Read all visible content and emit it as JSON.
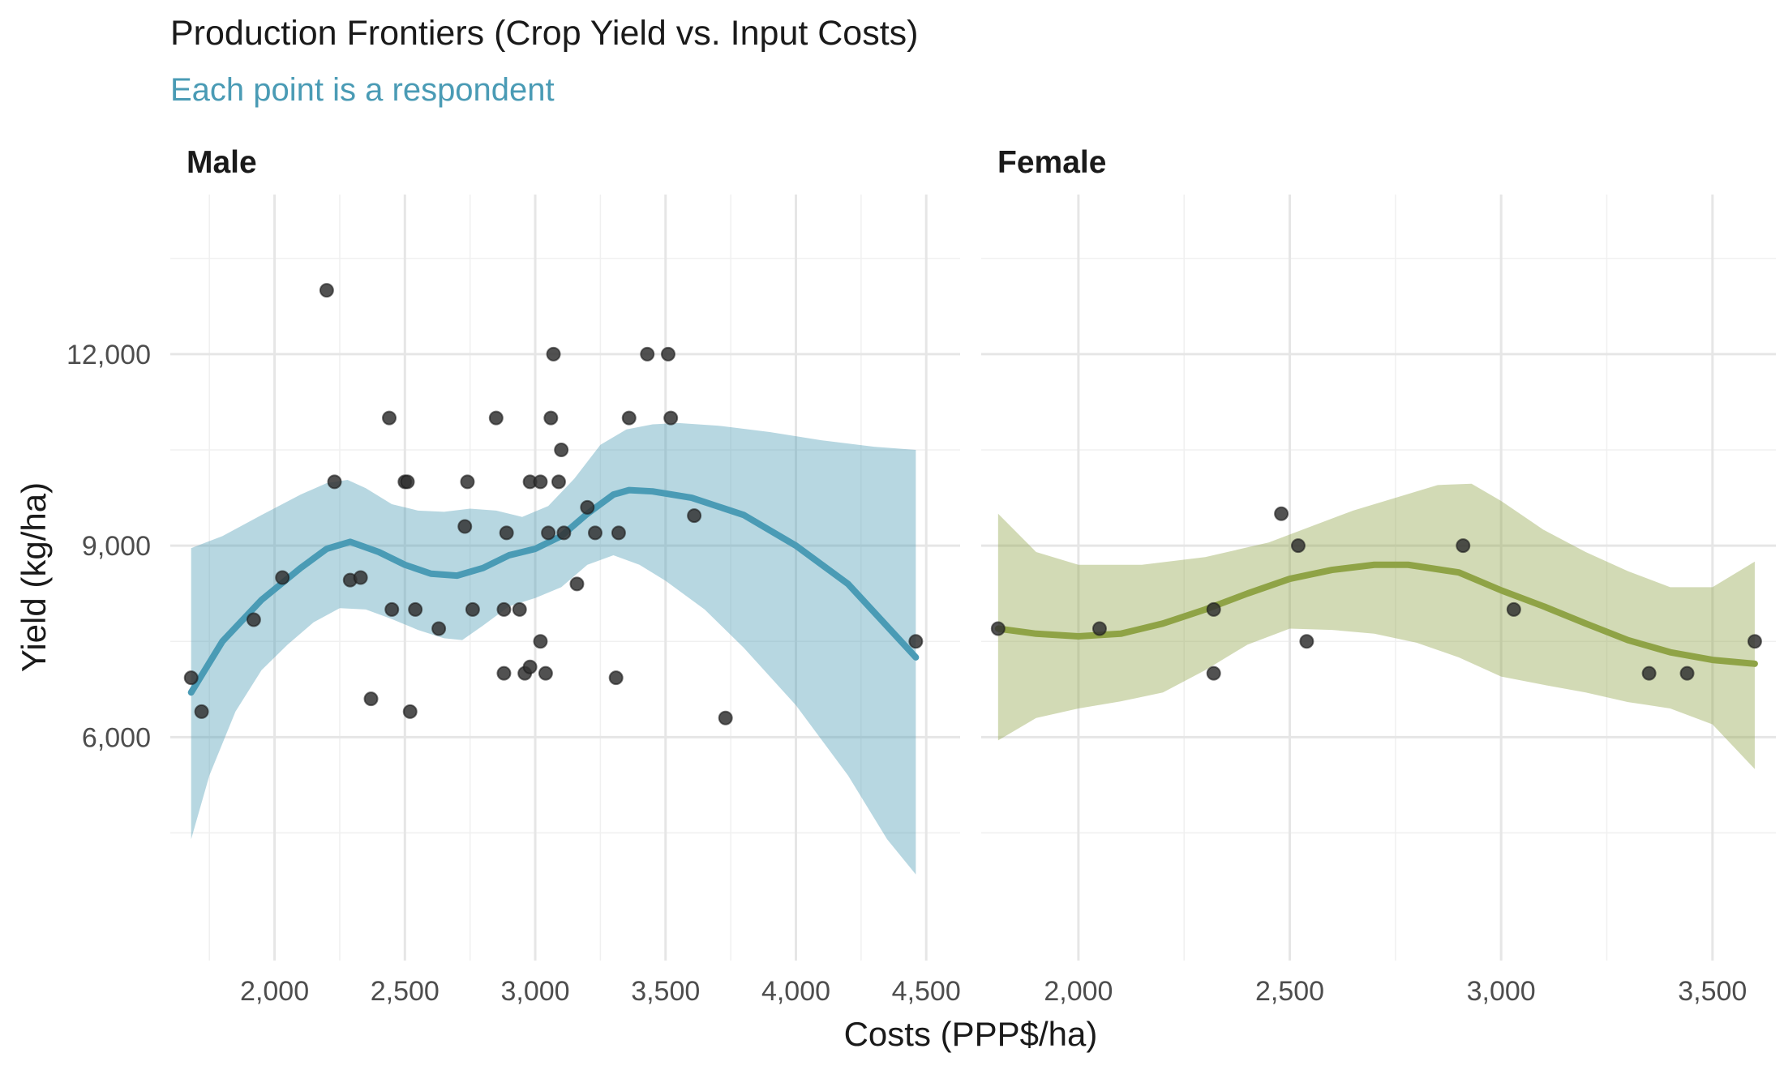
{
  "chart_data": {
    "type": "scatter",
    "title": "Production Frontiers (Crop Yield vs. Input Costs)",
    "subtitle": "Each point is a respondent",
    "xlabel": "Costs (PPP$/ha)",
    "ylabel": "Yield (kg/ha)",
    "grid": true,
    "legend": "none",
    "colors": {
      "subtitle": "#4a9bb5",
      "male": "#4a9bb5",
      "female": "#8fa346",
      "point": "#333333"
    },
    "y_ticks": [
      6000,
      9000,
      12000
    ],
    "y_tick_labels": [
      "6,000",
      "9,000",
      "12,000"
    ],
    "ylim": [
      2500,
      14500
    ],
    "panels": [
      {
        "name": "Male",
        "color": "#4a9bb5",
        "xlim": [
          1600,
          4630
        ],
        "x_ticks": [
          2000,
          2500,
          3000,
          3500,
          4000,
          4500
        ],
        "x_tick_labels": [
          "2,000",
          "2,500",
          "3,000",
          "3,500",
          "4,000",
          "4,500"
        ],
        "points": [
          [
            1680,
            6930
          ],
          [
            1720,
            6400
          ],
          [
            1920,
            7840
          ],
          [
            2030,
            8500
          ],
          [
            2200,
            13000
          ],
          [
            2230,
            10000
          ],
          [
            2290,
            8460
          ],
          [
            2330,
            8500
          ],
          [
            2370,
            6600
          ],
          [
            2440,
            11000
          ],
          [
            2450,
            8000
          ],
          [
            2500,
            10000
          ],
          [
            2510,
            10000
          ],
          [
            2520,
            6400
          ],
          [
            2540,
            8000
          ],
          [
            2630,
            7700
          ],
          [
            2730,
            9300
          ],
          [
            2740,
            10000
          ],
          [
            2760,
            8000
          ],
          [
            2850,
            11000
          ],
          [
            2880,
            7000
          ],
          [
            2880,
            8000
          ],
          [
            2890,
            9200
          ],
          [
            2940,
            8000
          ],
          [
            2960,
            7000
          ],
          [
            2980,
            7100
          ],
          [
            2980,
            10000
          ],
          [
            3020,
            7500
          ],
          [
            3020,
            10000
          ],
          [
            3040,
            7000
          ],
          [
            3050,
            9200
          ],
          [
            3060,
            11000
          ],
          [
            3070,
            12000
          ],
          [
            3090,
            10000
          ],
          [
            3100,
            10500
          ],
          [
            3110,
            9200
          ],
          [
            3160,
            8400
          ],
          [
            3200,
            9600
          ],
          [
            3230,
            9200
          ],
          [
            3310,
            6930
          ],
          [
            3320,
            9200
          ],
          [
            3360,
            11000
          ],
          [
            3430,
            12000
          ],
          [
            3510,
            12000
          ],
          [
            3520,
            11000
          ],
          [
            3610,
            9470
          ],
          [
            3730,
            6300
          ],
          [
            4460,
            7500
          ]
        ],
        "fit": [
          [
            1680,
            6700
          ],
          [
            1800,
            7500
          ],
          [
            1950,
            8150
          ],
          [
            2100,
            8650
          ],
          [
            2200,
            8950
          ],
          [
            2290,
            9060
          ],
          [
            2400,
            8900
          ],
          [
            2500,
            8700
          ],
          [
            2600,
            8560
          ],
          [
            2700,
            8530
          ],
          [
            2800,
            8650
          ],
          [
            2900,
            8850
          ],
          [
            3000,
            8950
          ],
          [
            3100,
            9150
          ],
          [
            3200,
            9500
          ],
          [
            3300,
            9800
          ],
          [
            3360,
            9870
          ],
          [
            3450,
            9850
          ],
          [
            3600,
            9750
          ],
          [
            3800,
            9480
          ],
          [
            4000,
            9000
          ],
          [
            4200,
            8400
          ],
          [
            4460,
            7250
          ]
        ],
        "ci_upper": [
          [
            1680,
            8960
          ],
          [
            1800,
            9150
          ],
          [
            1950,
            9480
          ],
          [
            2100,
            9800
          ],
          [
            2200,
            9980
          ],
          [
            2280,
            10030
          ],
          [
            2350,
            9900
          ],
          [
            2450,
            9650
          ],
          [
            2550,
            9550
          ],
          [
            2650,
            9530
          ],
          [
            2750,
            9580
          ],
          [
            2850,
            9550
          ],
          [
            2950,
            9450
          ],
          [
            3050,
            9620
          ],
          [
            3150,
            10050
          ],
          [
            3250,
            10580
          ],
          [
            3350,
            10820
          ],
          [
            3450,
            10900
          ],
          [
            3550,
            10920
          ],
          [
            3700,
            10880
          ],
          [
            3900,
            10780
          ],
          [
            4100,
            10650
          ],
          [
            4300,
            10550
          ],
          [
            4460,
            10500
          ]
        ],
        "ci_lower": [
          [
            1680,
            4400
          ],
          [
            1750,
            5400
          ],
          [
            1850,
            6400
          ],
          [
            1950,
            7050
          ],
          [
            2050,
            7450
          ],
          [
            2150,
            7800
          ],
          [
            2250,
            8020
          ],
          [
            2350,
            8000
          ],
          [
            2450,
            7850
          ],
          [
            2550,
            7680
          ],
          [
            2650,
            7550
          ],
          [
            2720,
            7520
          ],
          [
            2800,
            7750
          ],
          [
            2900,
            8050
          ],
          [
            3000,
            8180
          ],
          [
            3100,
            8350
          ],
          [
            3200,
            8700
          ],
          [
            3300,
            8850
          ],
          [
            3400,
            8700
          ],
          [
            3500,
            8450
          ],
          [
            3650,
            8000
          ],
          [
            3800,
            7400
          ],
          [
            4000,
            6500
          ],
          [
            4200,
            5400
          ],
          [
            4350,
            4400
          ],
          [
            4460,
            3850
          ]
        ]
      },
      {
        "name": "Female",
        "color": "#8fa346",
        "xlim": [
          1770,
          3650
        ],
        "x_ticks": [
          2000,
          2500,
          3000,
          3500
        ],
        "x_tick_labels": [
          "2,000",
          "2,500",
          "3,000",
          "3,500"
        ],
        "points": [
          [
            1810,
            7700
          ],
          [
            2050,
            7700
          ],
          [
            2320,
            7000
          ],
          [
            2320,
            8000
          ],
          [
            2480,
            9500
          ],
          [
            2520,
            9000
          ],
          [
            2540,
            7500
          ],
          [
            2910,
            9000
          ],
          [
            3030,
            8000
          ],
          [
            3350,
            7000
          ],
          [
            3440,
            7000
          ],
          [
            3600,
            7500
          ]
        ],
        "fit": [
          [
            1810,
            7700
          ],
          [
            1900,
            7620
          ],
          [
            2000,
            7580
          ],
          [
            2100,
            7620
          ],
          [
            2200,
            7780
          ],
          [
            2300,
            8000
          ],
          [
            2400,
            8250
          ],
          [
            2500,
            8480
          ],
          [
            2600,
            8620
          ],
          [
            2700,
            8700
          ],
          [
            2780,
            8700
          ],
          [
            2900,
            8580
          ],
          [
            3000,
            8300
          ],
          [
            3100,
            8050
          ],
          [
            3200,
            7780
          ],
          [
            3300,
            7520
          ],
          [
            3400,
            7330
          ],
          [
            3500,
            7210
          ],
          [
            3600,
            7150
          ]
        ],
        "ci_upper": [
          [
            1810,
            9500
          ],
          [
            1900,
            8900
          ],
          [
            2000,
            8700
          ],
          [
            2150,
            8700
          ],
          [
            2300,
            8820
          ],
          [
            2450,
            9050
          ],
          [
            2550,
            9300
          ],
          [
            2650,
            9550
          ],
          [
            2750,
            9750
          ],
          [
            2850,
            9950
          ],
          [
            2930,
            9970
          ],
          [
            3000,
            9700
          ],
          [
            3100,
            9250
          ],
          [
            3200,
            8900
          ],
          [
            3300,
            8600
          ],
          [
            3400,
            8350
          ],
          [
            3500,
            8350
          ],
          [
            3600,
            8750
          ]
        ],
        "ci_lower": [
          [
            1810,
            5950
          ],
          [
            1900,
            6300
          ],
          [
            2000,
            6450
          ],
          [
            2100,
            6560
          ],
          [
            2200,
            6700
          ],
          [
            2300,
            7050
          ],
          [
            2400,
            7450
          ],
          [
            2500,
            7700
          ],
          [
            2600,
            7680
          ],
          [
            2700,
            7620
          ],
          [
            2800,
            7480
          ],
          [
            2900,
            7250
          ],
          [
            3000,
            6950
          ],
          [
            3100,
            6820
          ],
          [
            3200,
            6700
          ],
          [
            3300,
            6550
          ],
          [
            3400,
            6450
          ],
          [
            3500,
            6200
          ],
          [
            3600,
            5500
          ]
        ]
      }
    ]
  }
}
